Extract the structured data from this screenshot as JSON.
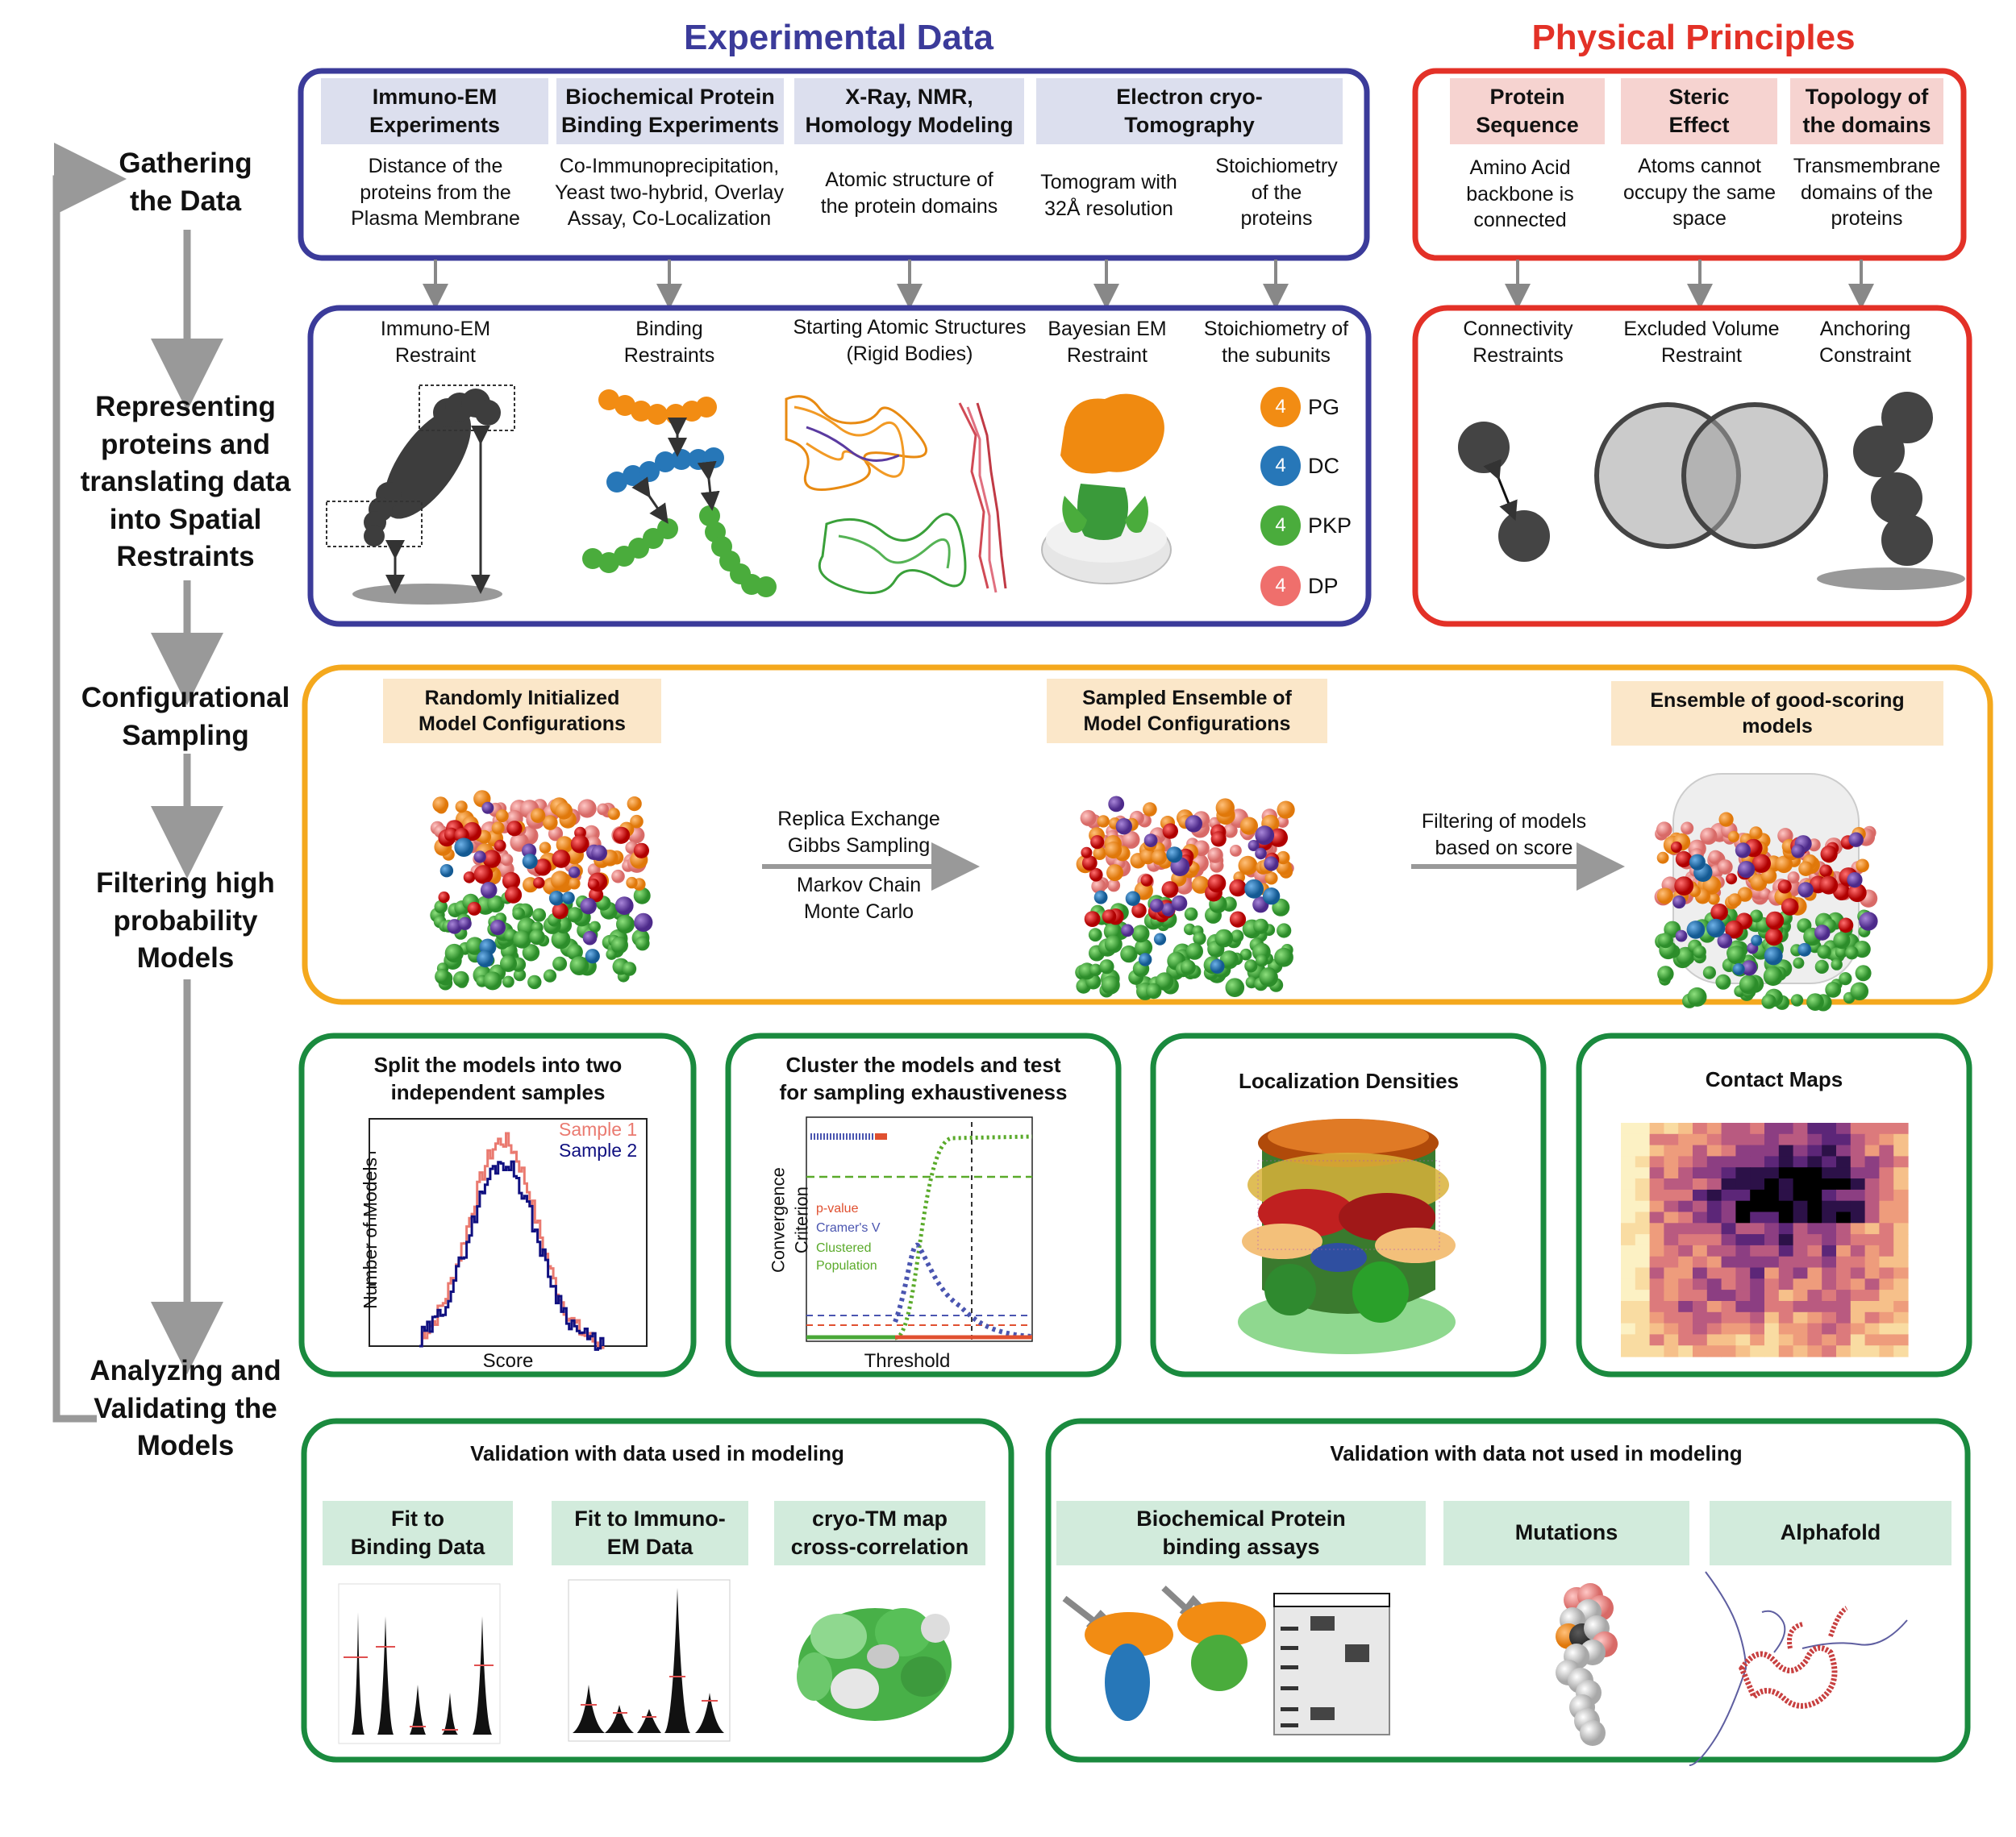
{
  "sections": {
    "experimental_title": "Experimental Data",
    "physical_title": "Physical Principles"
  },
  "colors": {
    "experimental": "#3b3b9a",
    "physical": "#e33127",
    "sampling": "#f4a81d",
    "analysis": "#1a8a3e",
    "arrow": "#999999",
    "pg": "#f28c13",
    "dc": "#2777b8",
    "pkp": "#4aac3c",
    "dp": "#ef6f6c"
  },
  "steps": [
    {
      "label": "Gathering\nthe Data"
    },
    {
      "label": "Representing\nproteins and\ntranslating data\ninto Spatial\nRestraints"
    },
    {
      "label": "Configurational\nSampling"
    },
    {
      "label": "Filtering high\nprobability\nModels"
    },
    {
      "label": "Analyzing and\nValidating the\nModels"
    }
  ],
  "experimental_data": [
    {
      "header": "Immuno-EM\nExperiments",
      "desc": "Distance of the\nproteins from the\nPlasma Membrane"
    },
    {
      "header": "Biochemical Protein\nBinding Experiments",
      "desc": "Co-Immunoprecipitation,\nYeast two-hybrid, Overlay\nAssay, Co-Localization"
    },
    {
      "header": "X-Ray, NMR,\nHomology Modeling",
      "desc": "Atomic structure of\nthe protein domains"
    },
    {
      "header": "Electron cryo-\nTomography",
      "desc": "Tomogram with\n32Å resolution",
      "desc2": "Stoichiometry\nof the\nproteins"
    }
  ],
  "physical_principles": [
    {
      "header": "Protein\nSequence",
      "desc": "Amino Acid\nbackbone is\nconnected"
    },
    {
      "header": "Steric\nEffect",
      "desc": "Atoms cannot\noccupy the same\nspace"
    },
    {
      "header": "Topology of\nthe domains",
      "desc": "Transmembrane\ndomains of the\nproteins"
    }
  ],
  "restraints": [
    "Immuno-EM\nRestraint",
    "Binding\nRestraints",
    "Starting Atomic Structures\n(Rigid Bodies)",
    "Bayesian EM\nRestraint",
    "Stoichiometry of\nthe subunits"
  ],
  "physical_restraints": [
    "Connectivity\nRestraints",
    "Excluded Volume\nRestraint",
    "Anchoring\nConstraint"
  ],
  "stoichiometry": [
    {
      "count": "4",
      "name": "PG"
    },
    {
      "count": "4",
      "name": "DC"
    },
    {
      "count": "4",
      "name": "PKP"
    },
    {
      "count": "4",
      "name": "DP"
    }
  ],
  "sampling": {
    "stage1": "Randomly Initialized\nModel Configurations",
    "stage2": "Sampled Ensemble of\nModel Configurations",
    "stage3": "Ensemble of good-scoring\nmodels",
    "arrow1_top": "Replica Exchange\nGibbs Sampling",
    "arrow1_bottom": "Markov Chain\nMonte Carlo",
    "arrow2": "Filtering of models\nbased on score"
  },
  "analysis_panels": [
    {
      "title": "Split the models into two\nindependent samples"
    },
    {
      "title": "Cluster the models and test\nfor sampling exhaustiveness"
    },
    {
      "title": "Localization Densities"
    },
    {
      "title": "Contact Maps"
    }
  ],
  "split_plot": {
    "xlabel": "Score",
    "ylabel": "Number of Models",
    "legend": [
      "Sample 1",
      "Sample 2"
    ]
  },
  "cluster_plot": {
    "xlabel": "Threshold",
    "ylabel": "Convergence\nCriterion",
    "legend": [
      "p-value",
      "Cramer's V",
      "Clustered\nPopulation"
    ]
  },
  "validation_used": {
    "title": "Validation with data used in modeling",
    "items": [
      "Fit to\nBinding Data",
      "Fit to Immuno-\nEM Data",
      "cryo-TM map\ncross-correlation"
    ]
  },
  "validation_not_used": {
    "title": "Validation with data not used in modeling",
    "items": [
      "Biochemical Protein\nbinding assays",
      "Mutations",
      "Alphafold"
    ]
  }
}
